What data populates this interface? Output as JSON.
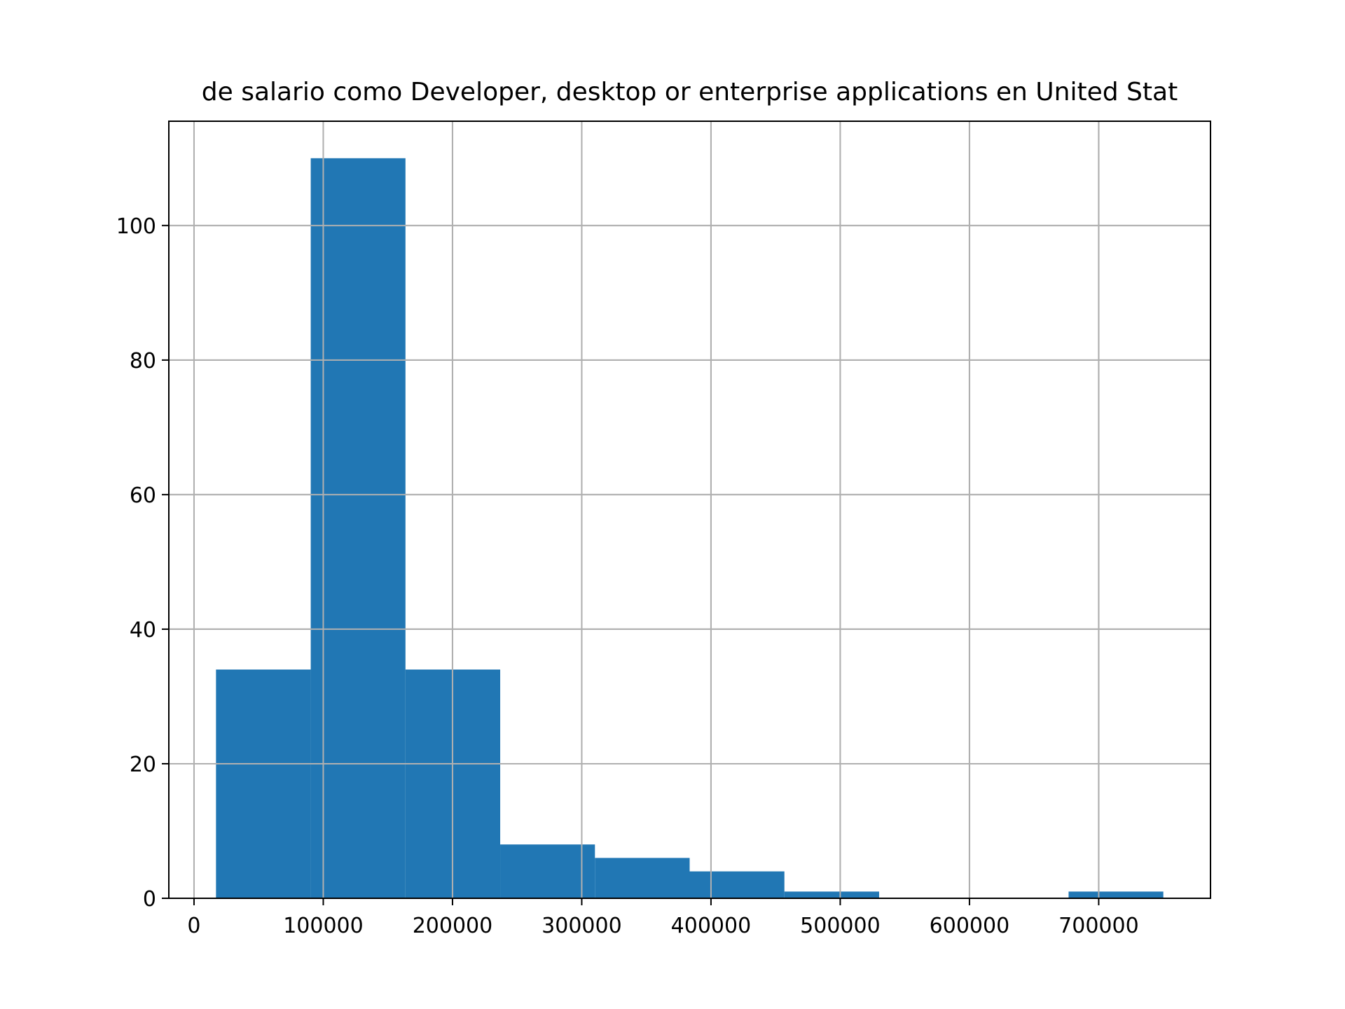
{
  "chart_data": {
    "type": "bar",
    "variant": "histogram",
    "title": "Distribución de salario como Developer, desktop or enterprise applications en United States",
    "title_visible_portion": "de salario como Developer, desktop or enterprise applications en United Stat",
    "xlabel": "",
    "ylabel": "",
    "bin_edges": [
      17000,
      90300,
      163600,
      236900,
      310200,
      383500,
      456800,
      530100,
      603400,
      676700,
      750000
    ],
    "values": [
      34,
      110,
      34,
      8,
      6,
      4,
      1,
      0,
      0,
      1
    ],
    "xlim": [
      -19500,
      786500
    ],
    "ylim": [
      0,
      115.5
    ],
    "xticks": [
      0,
      100000,
      200000,
      300000,
      400000,
      500000,
      600000,
      700000
    ],
    "xtick_labels": [
      "0",
      "100000",
      "200000",
      "300000",
      "400000",
      "500000",
      "600000",
      "700000"
    ],
    "yticks": [
      0,
      20,
      40,
      60,
      80,
      100
    ],
    "ytick_labels": [
      "0",
      "20",
      "40",
      "60",
      "80",
      "100"
    ],
    "grid": true,
    "colors": {
      "bar": "#2177b4",
      "grid": "#b0b0b0",
      "axes": "#000000"
    }
  }
}
